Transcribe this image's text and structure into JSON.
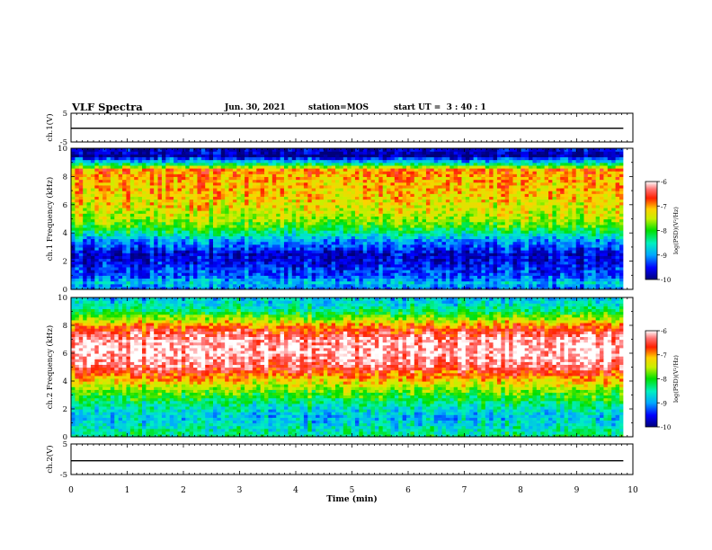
{
  "header": {
    "title": "VLF Spectra",
    "date": "Jun. 30, 2021",
    "station": "station=MOS",
    "start": "start UT =  3 : 40 : 1"
  },
  "chart_data": [
    {
      "type": "line",
      "panel": "ch1-voltage",
      "ylabel": "ch.1(V)",
      "ylim": [
        -5,
        5
      ],
      "yticks": [
        "5",
        "-5"
      ],
      "xlim": [
        0,
        10
      ],
      "series": [
        {
          "x": [
            0,
            9.83
          ],
          "y": [
            -0.2,
            -0.2
          ]
        }
      ]
    },
    {
      "type": "heatmap",
      "panel": "ch1-spectrogram",
      "ylabel": "ch.1  Frequency (kHz)",
      "ylim": [
        0,
        10
      ],
      "yticks": [
        "0",
        "2",
        "4",
        "6",
        "8",
        "10"
      ],
      "xlim": [
        0,
        10
      ],
      "data_extent_min": 9.83,
      "colorbar": {
        "label": "log(PSD)(V²/Hz)",
        "range": [
          -10,
          -6
        ],
        "ticks": [
          "-6",
          "-7",
          "-8",
          "-9",
          "-10"
        ]
      },
      "levels_by_frequency": [
        {
          "f": 0.0,
          "v": -9.2
        },
        {
          "f": 0.5,
          "v": -8.8
        },
        {
          "f": 1.0,
          "v": -9.3
        },
        {
          "f": 1.5,
          "v": -9.4
        },
        {
          "f": 2.0,
          "v": -9.6
        },
        {
          "f": 2.5,
          "v": -9.7
        },
        {
          "f": 3.0,
          "v": -9.3
        },
        {
          "f": 3.5,
          "v": -9.0
        },
        {
          "f": 4.0,
          "v": -8.4
        },
        {
          "f": 4.5,
          "v": -7.9
        },
        {
          "f": 5.0,
          "v": -7.6
        },
        {
          "f": 5.5,
          "v": -7.4
        },
        {
          "f": 6.0,
          "v": -7.3
        },
        {
          "f": 6.5,
          "v": -7.2
        },
        {
          "f": 7.0,
          "v": -7.1
        },
        {
          "f": 7.5,
          "v": -7.1
        },
        {
          "f": 8.0,
          "v": -7.0
        },
        {
          "f": 8.5,
          "v": -6.9
        },
        {
          "f": 9.0,
          "v": -8.6
        },
        {
          "f": 9.5,
          "v": -9.9
        },
        {
          "f": 10.0,
          "v": -9.6
        }
      ]
    },
    {
      "type": "heatmap",
      "panel": "ch2-spectrogram",
      "ylabel": "ch.2  Frequency (kHz)",
      "ylim": [
        0,
        10
      ],
      "yticks": [
        "0",
        "2",
        "4",
        "6",
        "8",
        "10"
      ],
      "xlim": [
        0,
        10
      ],
      "data_extent_min": 9.83,
      "colorbar": {
        "label": "log(PSD)(V²/Hz)",
        "range": [
          -10,
          -6
        ],
        "ticks": [
          "-6",
          "-7",
          "-8",
          "-9",
          "-10"
        ]
      },
      "levels_by_frequency": [
        {
          "f": 0.0,
          "v": -8.3
        },
        {
          "f": 0.5,
          "v": -8.5
        },
        {
          "f": 1.0,
          "v": -8.7
        },
        {
          "f": 1.5,
          "v": -8.8
        },
        {
          "f": 2.0,
          "v": -8.6
        },
        {
          "f": 2.5,
          "v": -8.3
        },
        {
          "f": 3.0,
          "v": -8.0
        },
        {
          "f": 3.5,
          "v": -7.6
        },
        {
          "f": 4.0,
          "v": -7.2
        },
        {
          "f": 4.5,
          "v": -6.8
        },
        {
          "f": 5.0,
          "v": -6.4
        },
        {
          "f": 5.5,
          "v": -6.2
        },
        {
          "f": 6.0,
          "v": -6.1
        },
        {
          "f": 6.5,
          "v": -6.1
        },
        {
          "f": 7.0,
          "v": -6.2
        },
        {
          "f": 7.5,
          "v": -6.5
        },
        {
          "f": 8.0,
          "v": -6.9
        },
        {
          "f": 8.5,
          "v": -7.6
        },
        {
          "f": 9.0,
          "v": -8.2
        },
        {
          "f": 9.5,
          "v": -8.6
        },
        {
          "f": 10.0,
          "v": -8.8
        }
      ]
    },
    {
      "type": "line",
      "panel": "ch2-voltage",
      "ylabel": "ch.2(V)",
      "ylim": [
        -5,
        5
      ],
      "yticks": [
        "5",
        "-5"
      ],
      "xlim": [
        0,
        10
      ],
      "series": [
        {
          "x": [
            0,
            9.83
          ],
          "y": [
            -0.5,
            -0.5
          ]
        }
      ]
    }
  ],
  "xaxis": {
    "label": "Time (min)",
    "ticks": [
      "0",
      "1",
      "2",
      "3",
      "4",
      "5",
      "6",
      "7",
      "8",
      "9",
      "10"
    ]
  }
}
